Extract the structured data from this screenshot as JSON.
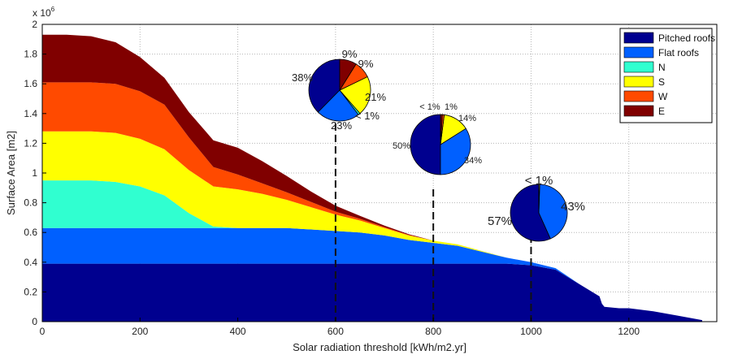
{
  "chart_data": {
    "type": "area",
    "xlabel": "Solar radiation threshold [kWh/m2.yr]",
    "ylabel": "Surface Area [m2]",
    "y_exponent_label": "x 10",
    "y_exponent_power": "6",
    "xlim": [
      0,
      1380
    ],
    "ylim": [
      0,
      2
    ],
    "xticks": [
      0,
      200,
      400,
      600,
      800,
      1000,
      1200
    ],
    "yticks": [
      0,
      0.2,
      0.4,
      0.6,
      0.8,
      1,
      1.2,
      1.4,
      1.6,
      1.8,
      2
    ],
    "ytick_labels": [
      "0",
      "0.2",
      "0.4",
      "0.6",
      "0.8",
      "1",
      "1.2",
      "1.4",
      "1.6",
      "1.8",
      "2"
    ],
    "grid": true,
    "legend_position": "top-right",
    "x": [
      0,
      50,
      100,
      150,
      200,
      250,
      300,
      350,
      400,
      450,
      500,
      550,
      600,
      650,
      700,
      750,
      800,
      850,
      900,
      950,
      1000,
      1050,
      1100,
      1140,
      1145,
      1150,
      1180,
      1200,
      1250,
      1300,
      1350
    ],
    "series": [
      {
        "name": "Pitched roofs",
        "color": "#00008f",
        "values": [
          0.39,
          0.39,
          0.39,
          0.39,
          0.39,
          0.39,
          0.39,
          0.39,
          0.39,
          0.39,
          0.39,
          0.39,
          0.39,
          0.39,
          0.39,
          0.39,
          0.39,
          0.39,
          0.39,
          0.39,
          0.38,
          0.35,
          0.25,
          0.17,
          0.12,
          0.1,
          0.09,
          0.09,
          0.07,
          0.04,
          0.01
        ]
      },
      {
        "name": "Flat roofs",
        "color": "#0060ff",
        "values": [
          0.24,
          0.24,
          0.24,
          0.24,
          0.24,
          0.24,
          0.24,
          0.24,
          0.24,
          0.24,
          0.24,
          0.23,
          0.22,
          0.21,
          0.19,
          0.16,
          0.14,
          0.12,
          0.08,
          0.04,
          0.02,
          0.01,
          0.0,
          0.0,
          0.0,
          0.0,
          0.0,
          0.0,
          0.0,
          0.0,
          0.0
        ]
      },
      {
        "name": "N",
        "color": "#30ffd0",
        "values": [
          0.32,
          0.32,
          0.32,
          0.31,
          0.28,
          0.22,
          0.1,
          0.01,
          0.0,
          0.0,
          0.0,
          0.0,
          0.0,
          0.0,
          0.0,
          0.0,
          0.0,
          0.0,
          0.0,
          0.0,
          0.0,
          0.0,
          0.0,
          0.0,
          0.0,
          0.0,
          0.0,
          0.0,
          0.0,
          0.0,
          0.0
        ]
      },
      {
        "name": "S",
        "color": "#ffff00",
        "values": [
          0.33,
          0.33,
          0.33,
          0.33,
          0.32,
          0.31,
          0.29,
          0.27,
          0.26,
          0.23,
          0.19,
          0.15,
          0.11,
          0.08,
          0.05,
          0.03,
          0.015,
          0.01,
          0.005,
          0.0,
          0.0,
          0.0,
          0.0,
          0.0,
          0.0,
          0.0,
          0.0,
          0.0,
          0.0,
          0.0,
          0.0
        ]
      },
      {
        "name": "W",
        "color": "#ff4a00",
        "values": [
          0.33,
          0.33,
          0.33,
          0.33,
          0.32,
          0.3,
          0.22,
          0.13,
          0.1,
          0.07,
          0.05,
          0.035,
          0.02,
          0.012,
          0.006,
          0.003,
          0.0,
          0.0,
          0.0,
          0.0,
          0.0,
          0.0,
          0.0,
          0.0,
          0.0,
          0.0,
          0.0,
          0.0,
          0.0,
          0.0,
          0.0
        ]
      },
      {
        "name": "E",
        "color": "#800000",
        "values": [
          0.32,
          0.32,
          0.31,
          0.28,
          0.23,
          0.18,
          0.17,
          0.18,
          0.18,
          0.15,
          0.11,
          0.07,
          0.04,
          0.02,
          0.01,
          0.005,
          0.0,
          0.0,
          0.0,
          0.0,
          0.0,
          0.0,
          0.0,
          0.0,
          0.0,
          0.0,
          0.0,
          0.0,
          0.0,
          0.0,
          0.0
        ]
      }
    ],
    "threshold_lines": [
      600,
      800,
      1000
    ],
    "pies": [
      {
        "at_x": 600,
        "slices": [
          {
            "series": "Pitched roofs",
            "value": 38,
            "label": "38%"
          },
          {
            "series": "Flat roofs",
            "value": 23,
            "label": "23%"
          },
          {
            "series": "N",
            "value": 1,
            "label": "< 1%"
          },
          {
            "series": "S",
            "value": 21,
            "label": "21%"
          },
          {
            "series": "W",
            "value": 9,
            "label": "9%"
          },
          {
            "series": "E",
            "value": 9,
            "label": "9%"
          }
        ]
      },
      {
        "at_x": 800,
        "slices": [
          {
            "series": "Pitched roofs",
            "value": 50,
            "label": "50%"
          },
          {
            "series": "Flat roofs",
            "value": 34,
            "label": "34%"
          },
          {
            "series": "S",
            "value": 14,
            "label": "14%"
          },
          {
            "series": "W",
            "value": 1,
            "label": "1%"
          },
          {
            "series": "E",
            "value": 1,
            "label": "< 1%"
          }
        ]
      },
      {
        "at_x": 1000,
        "slices": [
          {
            "series": "Pitched roofs",
            "value": 57,
            "label": "57%"
          },
          {
            "series": "Flat roofs",
            "value": 43,
            "label": "43%"
          },
          {
            "series": "S",
            "value": 0.5,
            "label": "< 1%"
          }
        ]
      }
    ]
  }
}
